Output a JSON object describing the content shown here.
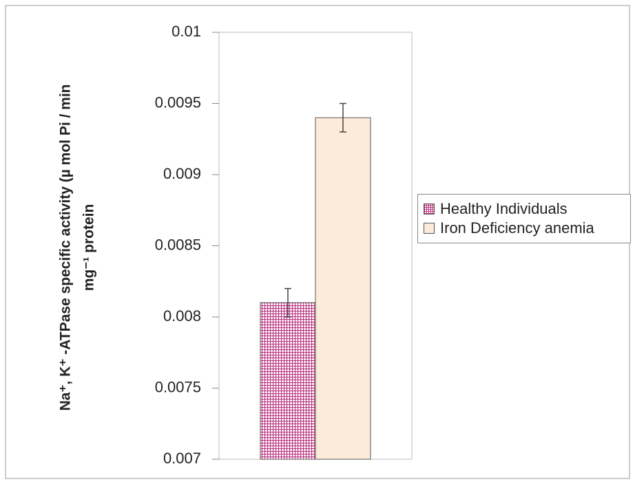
{
  "chart_data": {
    "type": "bar",
    "ylabel": [
      "Na⁺, K⁺ -ATPase specific activity (µ mol Pi / min",
      "mg⁻¹ protein"
    ],
    "categories": [
      null
    ],
    "series": [
      {
        "name": "Healthy Individuals",
        "color": "#b8307e",
        "hatch": "grid",
        "values": [
          0.0081
        ],
        "errors": [
          0.0001
        ]
      },
      {
        "name": "Iron Deficiency anemia",
        "color": "#fdebd9",
        "values": [
          0.0094
        ],
        "errors": [
          0.0001
        ]
      }
    ],
    "ylim": [
      0.007,
      0.01
    ],
    "yticks": [
      0.007,
      0.0075,
      0.008,
      0.0085,
      0.009,
      0.0095,
      0.01
    ],
    "legend": "right"
  }
}
